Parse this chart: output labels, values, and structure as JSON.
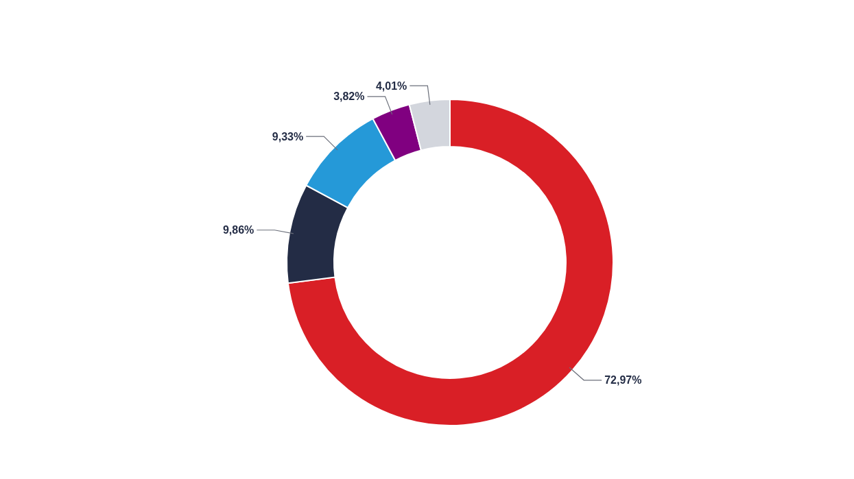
{
  "chart_data": {
    "type": "donut",
    "categories": [
      null,
      null,
      null,
      null,
      null
    ],
    "values": [
      72.97,
      9.86,
      9.33,
      3.82,
      4.01
    ],
    "colors": [
      "#d91f26",
      "#232c45",
      "#2599d8",
      "#800080",
      "#d3d6dd"
    ],
    "value_labels": [
      "72,97%",
      "9,86%",
      "9,33%",
      "3,82%",
      "4,01%"
    ]
  }
}
